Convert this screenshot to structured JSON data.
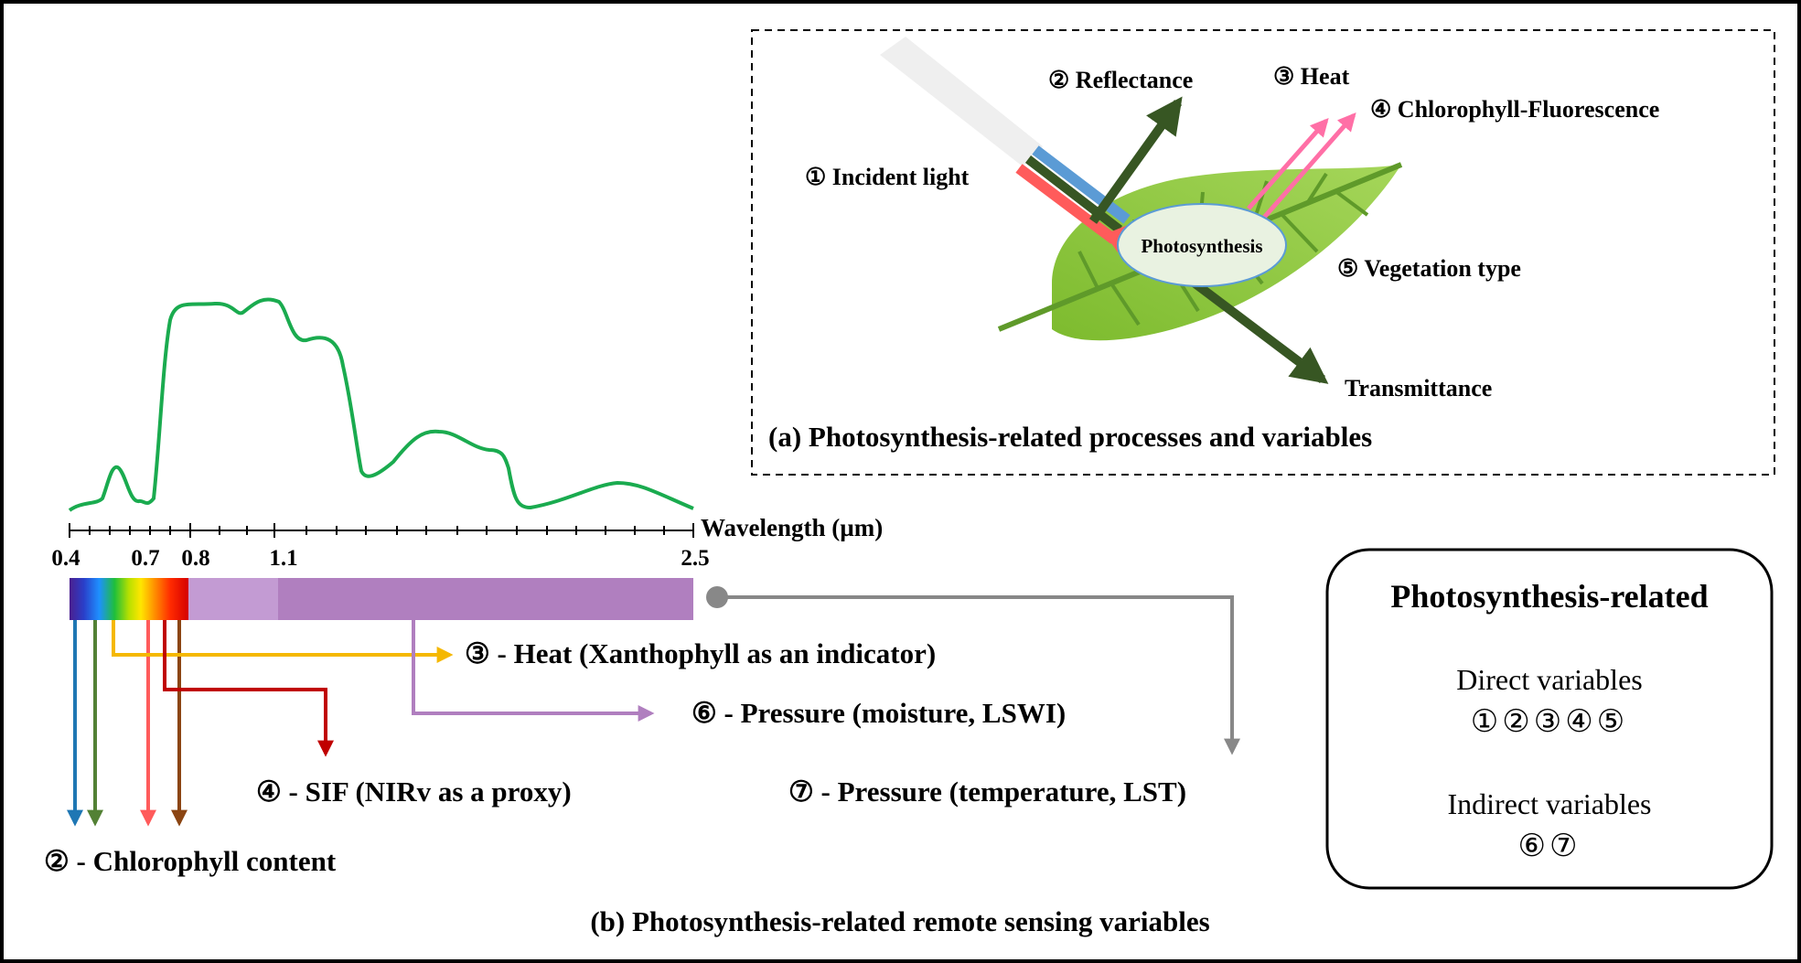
{
  "panel_a": {
    "caption": "(a) Photosynthesis-related processes and variables",
    "labels": {
      "incident_light": "① Incident light",
      "reflectance": "② Reflectance",
      "heat": "③ Heat",
      "fluorescence": "④ Chlorophyll-Fluorescence",
      "vegetation_type": "⑤ Vegetation type",
      "transmittance": "Transmittance",
      "photosynthesis": "Photosynthesis"
    }
  },
  "panel_b": {
    "caption": "(b) Photosynthesis-related remote sensing variables",
    "axis_label": "Wavelength (µm)",
    "tick_labels": [
      "0.4",
      "0.7",
      "0.8",
      "1.1",
      "2.5"
    ],
    "variables": {
      "heat": "③ - Heat (Xanthophyll as an indicator)",
      "pressure_moisture": "⑥ - Pressure (moisture, LSWI)",
      "sif": "④ - SIF (NIRv as a proxy)",
      "pressure_temperature": "⑦ - Pressure (temperature, LST)",
      "chlorophyll": "② - Chlorophyll content"
    }
  },
  "legend": {
    "title": "Photosynthesis-related",
    "direct_label": "Direct variables",
    "direct_values": "①②③④⑤",
    "indirect_label": "Indirect variables",
    "indirect_values": "⑥⑦"
  },
  "colors": {
    "leaf": "#8cc63f",
    "leaf_vein": "#5f9a2a",
    "dark_green": "#375623",
    "spectrum_curve": "#1aab4f",
    "nir_light": "#c39bd3",
    "nir_dark": "#b07fbf",
    "pink": "#ff6fa6",
    "blue_arrow": "#1f77b4",
    "green_arrow": "#538135",
    "red_arrow": "#ff5b5b",
    "brown_arrow": "#8b4513",
    "yellow_arrow": "#f5b800",
    "darkred_arrow": "#c00000",
    "purple_arrow": "#b07fbf",
    "gray_arrow": "#888888"
  }
}
